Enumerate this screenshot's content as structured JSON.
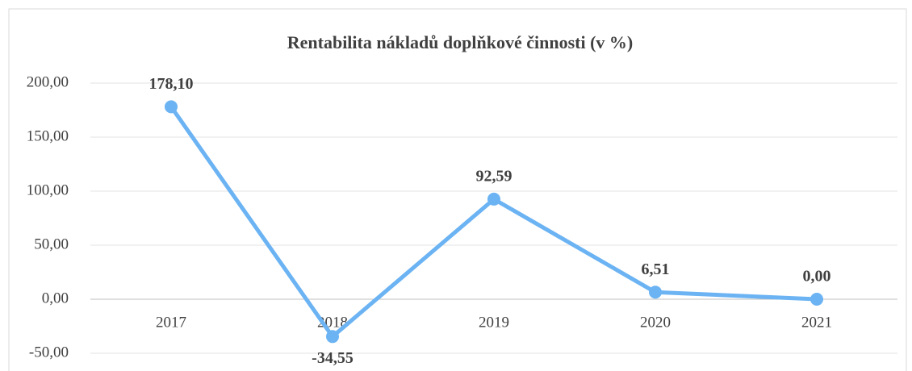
{
  "chart_data": {
    "type": "line",
    "title": "Rentabilita nákladů doplňkové činnosti (v %)",
    "categories": [
      "2017",
      "2018",
      "2019",
      "2020",
      "2021"
    ],
    "series": [
      {
        "name": "Rentabilita nákladů doplňkové činnosti",
        "color": "#6bb3f3",
        "values": [
          178.1,
          -34.55,
          92.59,
          6.51,
          0.0
        ],
        "value_labels": [
          "178,10",
          "-34,55",
          "92,59",
          "6,51",
          "0,00"
        ]
      }
    ],
    "ylim": [
      -50,
      200
    ],
    "yticks": [
      {
        "value": -50,
        "label": "-50,00"
      },
      {
        "value": 0,
        "label": "0,00"
      },
      {
        "value": 50,
        "label": "50,00"
      },
      {
        "value": 100,
        "label": "100,00"
      },
      {
        "value": 150,
        "label": "150,00"
      },
      {
        "value": 200,
        "label": "200,00"
      }
    ],
    "grid": true
  }
}
